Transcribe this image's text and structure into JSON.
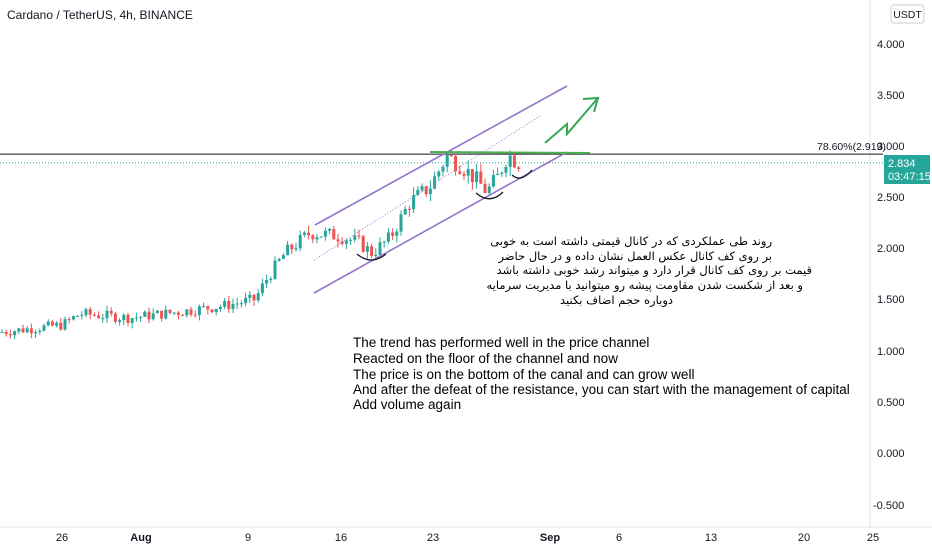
{
  "header": {
    "title": "Cardano / TetherUS, 4h, BINANCE",
    "currency_button": "USDT"
  },
  "price_scale": {
    "ticks": [
      "4.000",
      "3.500",
      "3.000",
      "2.500",
      "2.000",
      "1.500",
      "1.000",
      "0.500",
      "0.000",
      "-0.500"
    ],
    "last_price_label": "2.834",
    "countdown_label": "03:47:15",
    "fib_label": "78.60%(2.919)"
  },
  "time_scale": {
    "ticks": [
      "26",
      "Aug",
      "9",
      "16",
      "23",
      "Sep",
      "6",
      "13",
      "20",
      "25"
    ]
  },
  "notes": {
    "persian_lines": [
      "روند طی عملکردی که در کانال قیمتی داشته است به خوبی",
      "بر روی کف کانال عکس العمل نشان داده و در حال حاضر",
      "قیمت بر روی کف کانال قرار دارد و میتواند رشد خوبی داشته باشد",
      "و بعد از شکست شدن مقاومت پیشه رو میتوانید با مدیریت سرمایه",
      "دوباره حجم اضاف بکنید"
    ],
    "english_lines": [
      "The trend has performed well in the price channel",
      "Reacted on the floor of the channel and now",
      "The price is on the bottom of the canal and can grow well",
      "And after the defeat of the resistance, you can start with the management of capital",
      "Add volume again"
    ]
  },
  "colors": {
    "up": "#26a69a",
    "down": "#ef5350",
    "channel": "#9575cd",
    "arrow": "#34a853",
    "resistance": "#4caf50",
    "fib_line": "#131722",
    "last_price_bg": "#26a69a"
  },
  "chart_data": {
    "type": "candlestick",
    "title": "Cardano / TetherUS, 4h, BINANCE",
    "symbol": "ADA/USDT",
    "interval": "4h",
    "exchange": "BINANCE",
    "ylim": [
      -0.7,
      4.3
    ],
    "y_ticks": [
      4.0,
      3.5,
      3.0,
      2.5,
      2.0,
      1.5,
      1.0,
      0.5,
      0.0,
      -0.5
    ],
    "x_ticks": [
      "26",
      "Aug",
      "9",
      "16",
      "23",
      "Sep",
      "6",
      "13",
      "20",
      "25"
    ],
    "last_price": 2.834,
    "fib_level": {
      "label": "78.60%(2.919)",
      "value": 2.919
    },
    "grid": false,
    "approx_close_path": [
      {
        "x": "Jul 22",
        "y": 1.18
      },
      {
        "x": "Jul 26",
        "y": 1.25
      },
      {
        "x": "Jul 28",
        "y": 1.36
      },
      {
        "x": "Aug 1",
        "y": 1.32
      },
      {
        "x": "Aug 5",
        "y": 1.38
      },
      {
        "x": "Aug 8",
        "y": 1.44
      },
      {
        "x": "Aug 10",
        "y": 1.5
      },
      {
        "x": "Aug 11",
        "y": 1.72
      },
      {
        "x": "Aug 12",
        "y": 1.95
      },
      {
        "x": "Aug 13",
        "y": 2.15
      },
      {
        "x": "Aug 15",
        "y": 2.12
      },
      {
        "x": "Aug 17",
        "y": 2.05
      },
      {
        "x": "Aug 18",
        "y": 1.95
      },
      {
        "x": "Aug 19",
        "y": 2.1
      },
      {
        "x": "Aug 21",
        "y": 2.45
      },
      {
        "x": "Aug 22",
        "y": 2.6
      },
      {
        "x": "Aug 23",
        "y": 2.9
      },
      {
        "x": "Aug 24",
        "y": 2.8
      },
      {
        "x": "Aug 25",
        "y": 2.68
      },
      {
        "x": "Aug 26",
        "y": 2.55
      },
      {
        "x": "Aug 27",
        "y": 2.7
      },
      {
        "x": "Aug 28",
        "y": 2.92
      },
      {
        "x": "Aug 29",
        "y": 2.85
      },
      {
        "x": "Aug 30",
        "y": 2.834
      }
    ]
  }
}
